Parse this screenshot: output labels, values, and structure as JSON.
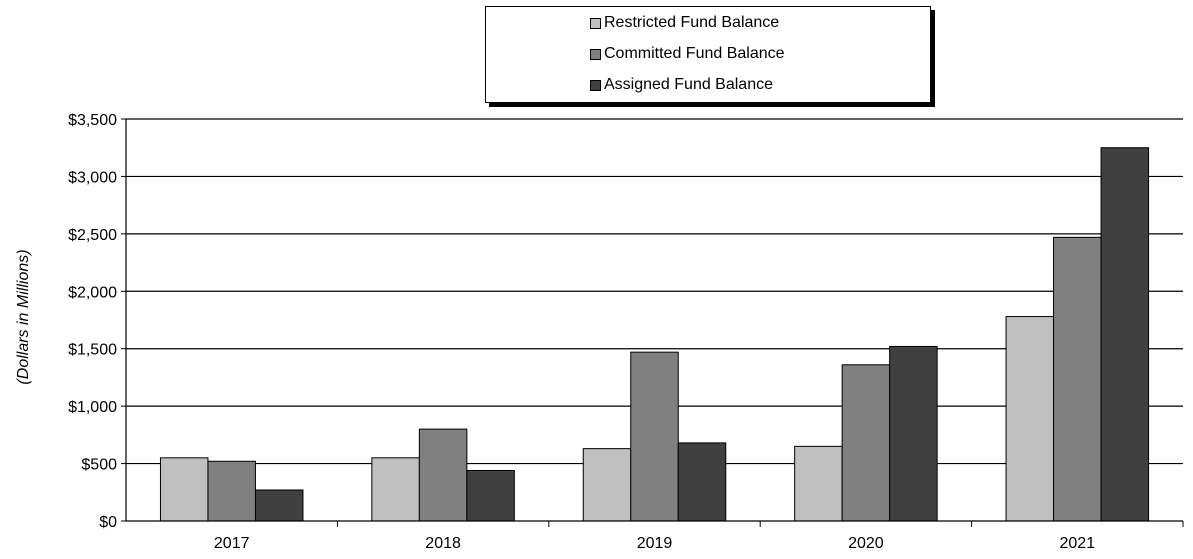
{
  "chart_data": {
    "type": "bar",
    "title": "",
    "xlabel": "",
    "ylabel": "(Dollars in Millions)",
    "ylim": [
      0,
      3500
    ],
    "yticks": [
      0,
      500,
      1000,
      1500,
      2000,
      2500,
      3000,
      3500
    ],
    "ytick_labels": [
      "$0",
      "$500",
      "$1,000",
      "$1,500",
      "$2,000",
      "$2,500",
      "$3,000",
      "$3,500"
    ],
    "categories": [
      "2017",
      "2018",
      "2019",
      "2020",
      "2021"
    ],
    "grid": "horizontal",
    "legend_position": "top",
    "series": [
      {
        "name": "Restricted Fund Balance",
        "color": "#c0c0c0",
        "values": [
          550,
          550,
          630,
          650,
          1780
        ]
      },
      {
        "name": "Committed Fund Balance",
        "color": "#808080",
        "values": [
          520,
          800,
          1470,
          1360,
          2470
        ]
      },
      {
        "name": "Assigned Fund Balance",
        "color": "#404040",
        "values": [
          270,
          440,
          680,
          1520,
          3250
        ]
      }
    ]
  }
}
